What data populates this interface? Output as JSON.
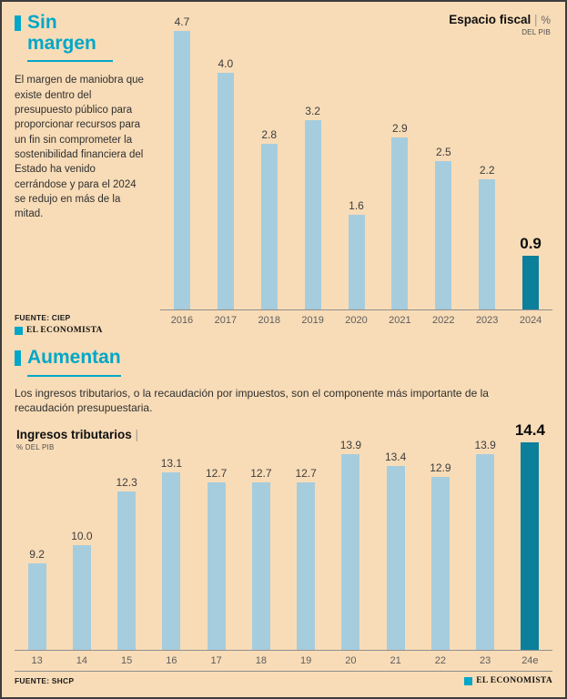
{
  "ui": {
    "pipe": "|"
  },
  "colors": {
    "background": "#f8dcb7",
    "accent": "#00a7c8",
    "bar": "#a6cddd",
    "highlight_bar": "#0c7f9b"
  },
  "chart_data": [
    {
      "type": "bar",
      "title": "Espacio fiscal",
      "unit": "%",
      "subtitle": "DEL PIB",
      "categories": [
        "2016",
        "2017",
        "2018",
        "2019",
        "2020",
        "2021",
        "2022",
        "2023",
        "2024"
      ],
      "values": [
        4.7,
        4.0,
        2.8,
        3.2,
        1.6,
        2.9,
        2.5,
        2.2,
        0.9
      ],
      "highlight_index": 8,
      "xlabel": "",
      "ylabel": "% DEL PIB",
      "ylim": [
        0,
        4.7
      ],
      "grid": false,
      "legend": "none",
      "bar_color": "#a6cddd",
      "highlight_color": "#0c7f9b"
    },
    {
      "type": "bar",
      "title": "Ingresos tributarios",
      "subtitle": "% DEL PIB",
      "categories": [
        "13",
        "14",
        "15",
        "16",
        "17",
        "18",
        "19",
        "20",
        "21",
        "22",
        "23",
        "24e"
      ],
      "values": [
        9.2,
        10.0,
        12.3,
        13.1,
        12.7,
        12.7,
        12.7,
        13.9,
        13.4,
        12.9,
        13.9,
        14.4
      ],
      "highlight_index": 11,
      "xlabel": "",
      "ylabel": "% DEL PIB",
      "ylim": [
        0,
        14.4
      ],
      "grid": false,
      "legend": "none",
      "bar_color": "#a6cddd",
      "highlight_color": "#0c7f9b"
    }
  ],
  "sections": [
    {
      "title": "Sin margen",
      "description": "El margen de maniobra que existe dentro del presupuesto público para proporcionar recursos para un fin sin comprometer la sostenibilidad financiera del Estado ha venido cerrándose y para el 2024 se redujo en más de la mitad.",
      "source": "FUENTE: CIEP",
      "brand": "EL ECONOMISTA"
    },
    {
      "title": "Aumentan",
      "description": "Los ingresos tributarios, o la recaudación por impuestos, son el componente más importante de la recaudación presupuestaria.",
      "source": "FUENTE: SHCP",
      "brand": "EL ECONOMISTA"
    }
  ]
}
